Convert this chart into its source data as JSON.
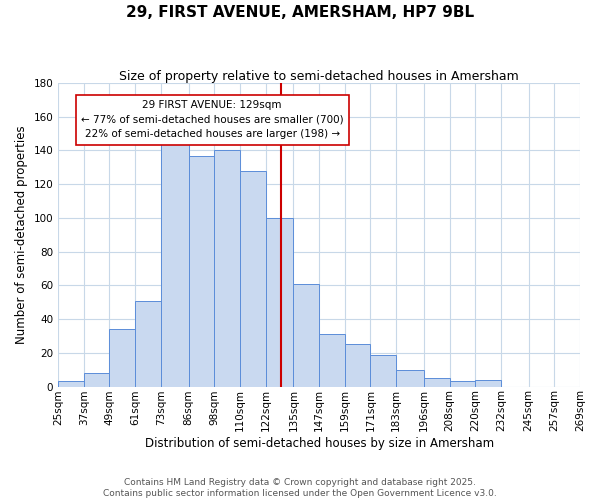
{
  "title": "29, FIRST AVENUE, AMERSHAM, HP7 9BL",
  "subtitle": "Size of property relative to semi-detached houses in Amersham",
  "xlabel": "Distribution of semi-detached houses by size in Amersham",
  "ylabel": "Number of semi-detached properties",
  "bin_edges": [
    25,
    37,
    49,
    61,
    73,
    86,
    98,
    110,
    122,
    135,
    147,
    159,
    171,
    183,
    196,
    208,
    220,
    232,
    245,
    257,
    269
  ],
  "bar_heights": [
    3,
    8,
    34,
    51,
    150,
    137,
    140,
    128,
    100,
    61,
    31,
    25,
    19,
    10,
    5,
    3,
    4,
    0,
    0,
    0
  ],
  "bar_color": "#c9d9f0",
  "bar_edge_color": "#5b8dd9",
  "property_size": 129,
  "vline_color": "#cc0000",
  "annotation_title": "29 FIRST AVENUE: 129sqm",
  "annotation_line1": "← 77% of semi-detached houses are smaller (700)",
  "annotation_line2": "22% of semi-detached houses are larger (198) →",
  "annotation_box_edge": "#cc0000",
  "annotation_box_face": "#ffffff",
  "ylim": [
    0,
    180
  ],
  "yticks": [
    0,
    20,
    40,
    60,
    80,
    100,
    120,
    140,
    160,
    180
  ],
  "footer_line1": "Contains HM Land Registry data © Crown copyright and database right 2025.",
  "footer_line2": "Contains public sector information licensed under the Open Government Licence v3.0.",
  "bg_color": "#ffffff",
  "grid_color": "#c8d8e8",
  "title_fontsize": 11,
  "subtitle_fontsize": 9,
  "axis_label_fontsize": 8.5,
  "tick_fontsize": 7.5,
  "annotation_fontsize": 7.5,
  "footer_fontsize": 6.5
}
